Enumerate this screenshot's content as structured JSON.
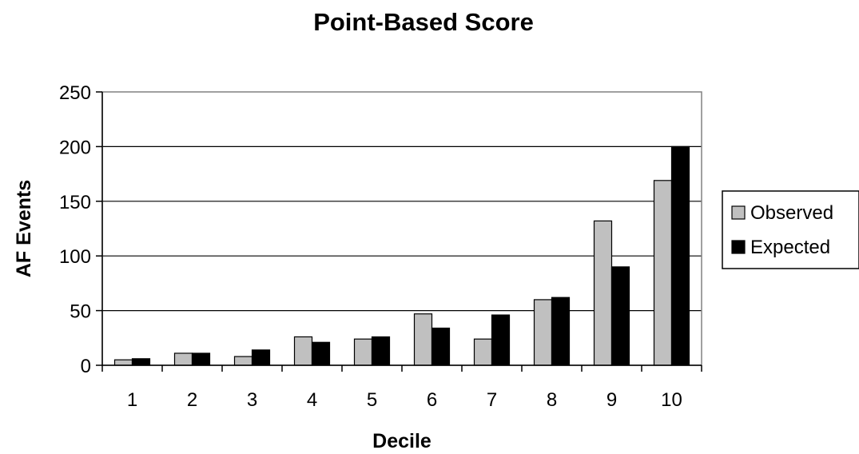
{
  "chart_data": {
    "type": "bar",
    "title": "Point-Based Score",
    "xlabel": "Decile",
    "ylabel": "AF Events",
    "categories": [
      "1",
      "2",
      "3",
      "4",
      "5",
      "6",
      "7",
      "8",
      "9",
      "10"
    ],
    "series": [
      {
        "name": "Observed",
        "color": "#c0c0c0",
        "values": [
          5,
          11,
          8,
          26,
          24,
          47,
          24,
          60,
          132,
          169
        ]
      },
      {
        "name": "Expected",
        "color": "#000000",
        "values": [
          6,
          11,
          14,
          21,
          26,
          34,
          46,
          62,
          90,
          200
        ]
      }
    ],
    "ylim": [
      0,
      250
    ],
    "yticks": [
      0,
      50,
      100,
      150,
      200,
      250
    ],
    "grid": true,
    "legend_position": "right"
  }
}
